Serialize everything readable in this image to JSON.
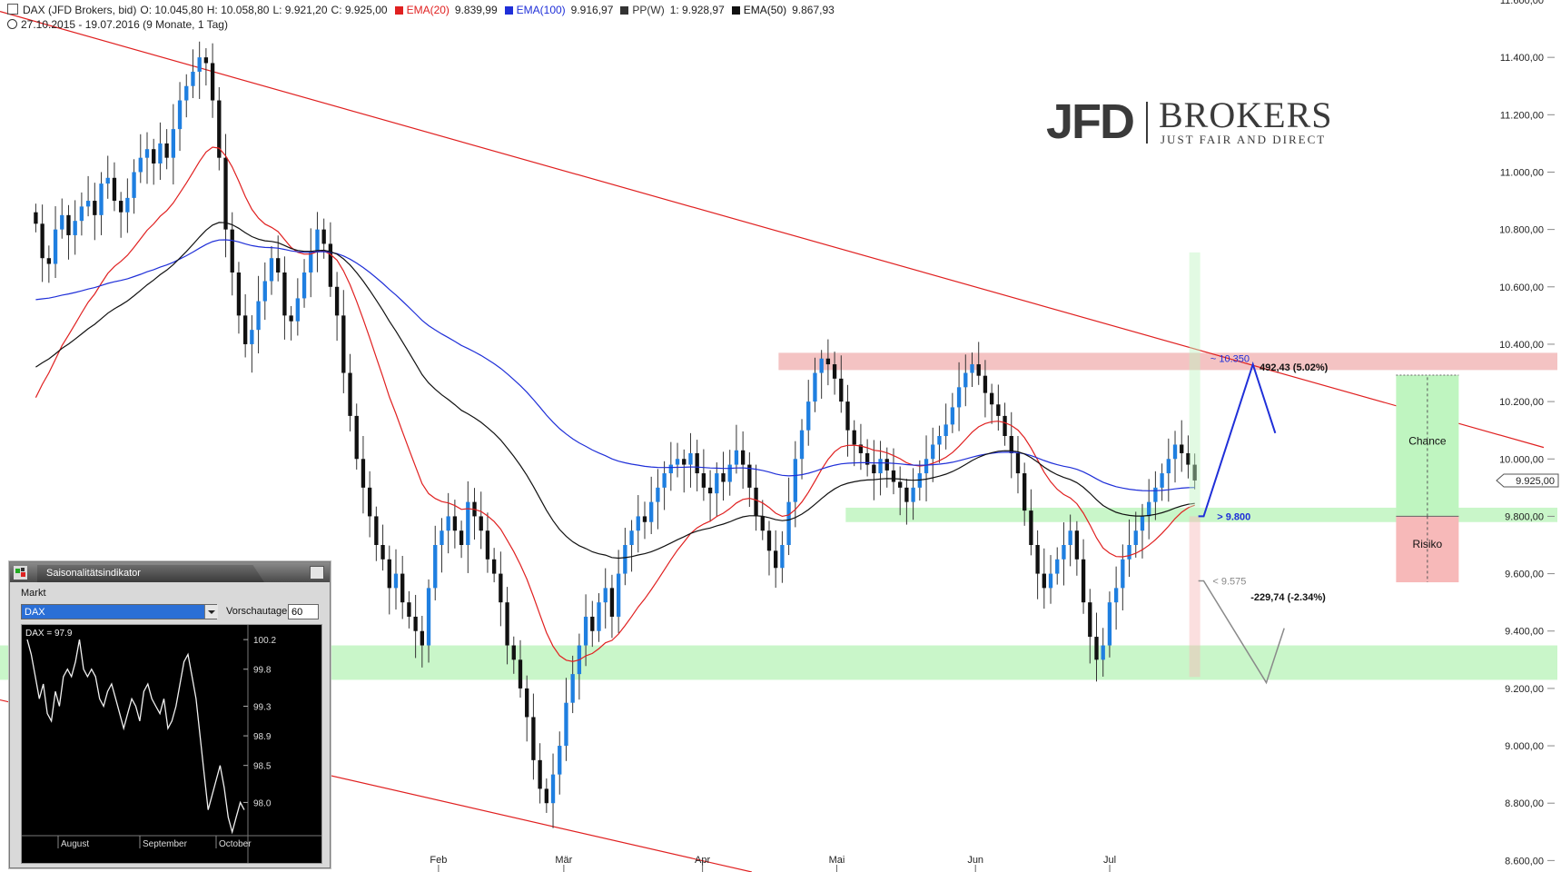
{
  "header": {
    "line1": [
      {
        "text": "DAX (JFD Brokers, bid)",
        "color": "#222222"
      },
      {
        "text": "O: 10.045,80",
        "color": "#222222"
      },
      {
        "text": "H: 10.058,80",
        "color": "#222222"
      },
      {
        "text": "L: 9.921,20",
        "color": "#222222"
      },
      {
        "text": "C: 9.925,00",
        "color": "#222222"
      }
    ],
    "indicators": [
      {
        "label": "EMA(20)",
        "value": "9.839,99",
        "color": "#e02020"
      },
      {
        "label": "EMA(100)",
        "value": "9.916,97",
        "color": "#1f2fd8"
      },
      {
        "label": "PP(W)",
        "value": "1: 9.928,97",
        "color": "#333333"
      },
      {
        "label": "EMA(50)",
        "value": "9.867,93",
        "color": "#111111"
      }
    ],
    "line2": "27.10.2015 - 19.07.2016 (9 Monate, 1 Tag)"
  },
  "logo": {
    "main": "JFD",
    "secondary": "BROKERS",
    "tagline": "JUST FAIR AND DIRECT"
  },
  "chart_data": {
    "type": "candlestick",
    "instrument": "DAX",
    "yaxis": {
      "ticks": [
        "11.400,00",
        "11.200,00",
        "11.000,00",
        "10.800,00",
        "10.600,00",
        "10.400,00",
        "10.200,00",
        "10.000,00",
        "9.800,00",
        "9.600,00",
        "9.400,00",
        "9.200,00",
        "9.000,00",
        "8.800,00",
        "8.600,00"
      ],
      "tick_values": [
        11400,
        11200,
        11000,
        10800,
        10600,
        10400,
        10200,
        10000,
        9800,
        9600,
        9400,
        9200,
        9000,
        8800,
        8600
      ],
      "top_label": "11.600,00",
      "range": [
        8560,
        11600
      ],
      "current_price_label": "9.925,00",
      "current_price": 9925
    },
    "xaxis": {
      "months": [
        {
          "label": "Feb",
          "day": 98
        },
        {
          "label": "Mär",
          "day": 126
        },
        {
          "label": "Apr",
          "day": 157
        },
        {
          "label": "Mai",
          "day": 187
        },
        {
          "label": "Jun",
          "day": 218
        },
        {
          "label": "Jul",
          "day": 248
        }
      ],
      "range_days": [
        0,
        345
      ]
    },
    "closes": [
      10820,
      10700,
      10680,
      10800,
      10850,
      10780,
      10830,
      10880,
      10900,
      10850,
      10960,
      10980,
      10900,
      10860,
      10910,
      11000,
      11050,
      11080,
      11030,
      11100,
      11050,
      11150,
      11250,
      11300,
      11350,
      11400,
      11380,
      11250,
      11050,
      10800,
      10650,
      10500,
      10400,
      10450,
      10550,
      10620,
      10700,
      10650,
      10500,
      10480,
      10560,
      10650,
      10720,
      10800,
      10750,
      10600,
      10500,
      10300,
      10150,
      10000,
      9900,
      9800,
      9700,
      9650,
      9550,
      9600,
      9500,
      9450,
      9400,
      9350,
      9550,
      9700,
      9750,
      9800,
      9750,
      9700,
      9850,
      9800,
      9750,
      9650,
      9600,
      9500,
      9350,
      9300,
      9200,
      9100,
      8950,
      8850,
      8800,
      8900,
      9000,
      9150,
      9250,
      9350,
      9450,
      9400,
      9500,
      9550,
      9450,
      9600,
      9700,
      9750,
      9800,
      9780,
      9850,
      9900,
      9950,
      9980,
      10000,
      9980,
      10020,
      9950,
      9900,
      9880,
      9950,
      9920,
      9980,
      10030,
      9980,
      9900,
      9800,
      9750,
      9680,
      9620,
      9700,
      9850,
      10000,
      10100,
      10200,
      10300,
      10350,
      10330,
      10280,
      10200,
      10100,
      10050,
      10020,
      9980,
      9950,
      10000,
      9960,
      9920,
      9900,
      9850,
      9900,
      9950,
      10000,
      10050,
      10080,
      10120,
      10180,
      10250,
      10300,
      10330,
      10290,
      10230,
      10190,
      10150,
      10080,
      10020,
      9950,
      9820,
      9700,
      9600,
      9550,
      9600,
      9650,
      9700,
      9750,
      9650,
      9500,
      9380,
      9300,
      9350,
      9500,
      9550,
      9650,
      9700,
      9750,
      9800,
      9850,
      9900,
      9950,
      10000,
      10050,
      10020,
      9980,
      9925
    ],
    "ema20_label": "EMA(20)",
    "ema100_label": "EMA(100)",
    "ema50_label": "EMA(50)",
    "trendlines": [
      {
        "from": [
          0,
          11560
        ],
        "to": [
          345,
          10040
        ],
        "color": "#e02020"
      },
      {
        "from": [
          0,
          9160
        ],
        "to": [
          168,
          8560
        ],
        "color": "#e02020"
      }
    ],
    "zones": [
      {
        "y_from": 10310,
        "y_to": 10370,
        "color": "#f2b9b9",
        "x_from_day": 174
      },
      {
        "y_from": 9780,
        "y_to": 9830,
        "color": "#bff5c0",
        "x_from_day": 189
      },
      {
        "y_from": 9230,
        "y_to": 9350,
        "color": "#bff5c0",
        "x_from_day": 0
      }
    ],
    "annotations": [
      {
        "text": "~ 10.350",
        "price": 10350,
        "color": "#1f2fd8"
      },
      {
        "text": "> 9.800",
        "price": 9800,
        "color": "#1f2fd8"
      },
      {
        "text": "< 9.575",
        "price": 9575,
        "color": "#888888"
      },
      {
        "text": "492,43 (5.02%)",
        "color": "#111111"
      },
      {
        "text": "-229,74 (-2.34%)",
        "color": "#111111"
      },
      {
        "text": "Chance",
        "color": "#111111"
      },
      {
        "text": "Risiko",
        "color": "#111111"
      }
    ],
    "risk_reward": {
      "entry": 9800,
      "target": 10292,
      "stop": 9570,
      "chance_color": "#bff5c0",
      "risk_color": "#f7b9b9"
    }
  },
  "seasonality": {
    "title": "Saisonalitätsindikator",
    "market_label": "Markt",
    "market_value": "DAX",
    "forecast_label": "Vorschautage",
    "forecast_value": "60",
    "legend": "DAX = 97.9",
    "y_ticks": [
      "100.2",
      "99.8",
      "99.3",
      "98.9",
      "98.5",
      "98.0"
    ],
    "x_labels": [
      "August",
      "September",
      "October"
    ],
    "values": [
      100.2,
      100.0,
      99.7,
      99.4,
      99.6,
      99.2,
      99.1,
      99.5,
      99.3,
      99.7,
      99.8,
      99.7,
      99.9,
      100.2,
      99.8,
      99.7,
      99.8,
      99.7,
      99.4,
      99.3,
      99.5,
      99.6,
      99.4,
      99.2,
      99.0,
      99.2,
      99.4,
      99.3,
      99.1,
      99.5,
      99.6,
      99.4,
      99.3,
      99.2,
      99.4,
      99.0,
      99.1,
      99.3,
      99.6,
      99.9,
      100.0,
      99.7,
      99.4,
      98.9,
      98.4,
      97.9,
      98.1,
      98.3,
      98.5,
      98.2,
      97.8,
      97.6,
      97.8,
      98.0,
      97.9
    ]
  }
}
